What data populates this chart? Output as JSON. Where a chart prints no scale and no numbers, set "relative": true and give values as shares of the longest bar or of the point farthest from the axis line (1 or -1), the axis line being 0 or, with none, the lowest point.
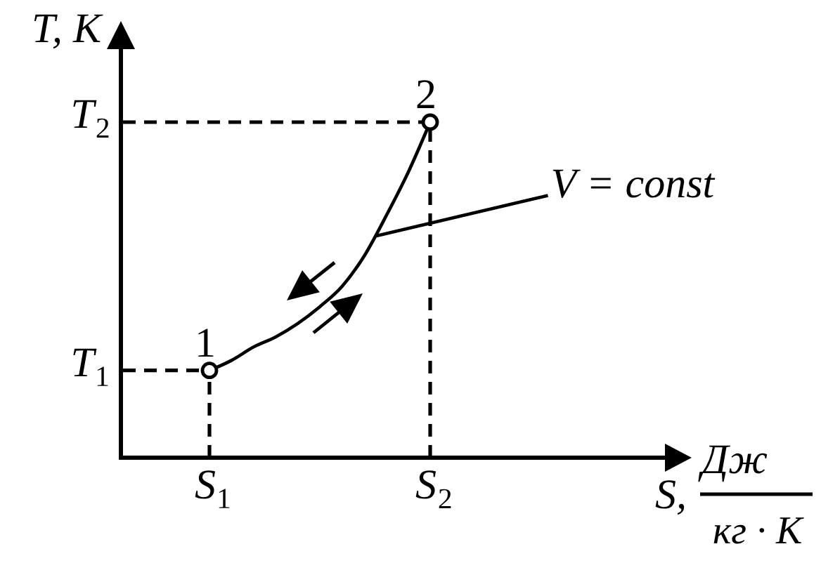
{
  "chart_data": {
    "type": "line",
    "xlabel": "S, Дж кг · К",
    "ylabel": "T, K",
    "relative": true,
    "categories": [
      "S₁",
      null,
      null,
      null,
      null,
      null,
      null,
      null,
      null,
      null,
      "S₂",
      null,
      null,
      null,
      null,
      null,
      null,
      null,
      null,
      null,
      null
    ],
    "series": [
      {
        "color": "#000000",
        "values": [
          0.26,
          0.29,
          0.33,
          0.36,
          0.4,
          0.45,
          0.51,
          0.6,
          0.72,
          0.85,
          1,
          null,
          null,
          null,
          null,
          null,
          null,
          null,
          null,
          null,
          null
        ]
      },
      {
        "type": "lollipop",
        "color": "#000000",
        "marker": "circle",
        "line_style": "dashed",
        "x": [
          "S₁",
          "S₂"
        ],
        "values": [
          0.26,
          1
        ]
      }
    ],
    "ref_lines": [
      {
        "axis": "y",
        "value": 0.26,
        "label": "T₁",
        "line_style": "dashed"
      },
      {
        "axis": "y",
        "value": 1,
        "label": "T₂",
        "line_style": "dashed"
      }
    ],
    "annotations": [
      {
        "text": "1",
        "x": "S₁",
        "y": 0.26
      },
      {
        "text": "2",
        "x": "S₂",
        "y": 1
      },
      "V = const"
    ]
  }
}
